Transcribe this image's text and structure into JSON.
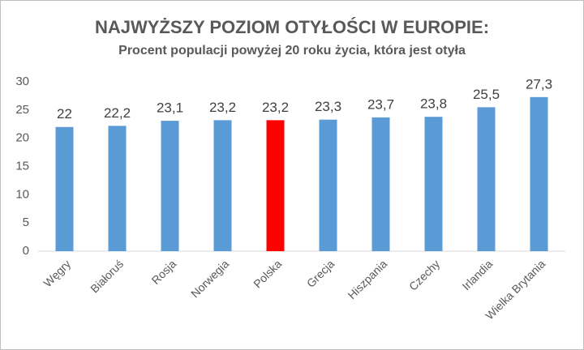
{
  "chart_data": {
    "type": "bar",
    "title": "NAJWYŻSZY POZIOM OTYŁOŚCI W EUROPIE:",
    "subtitle": "Procent populacji powyżej 20 roku życia, która jest otyła",
    "categories": [
      "Węgry",
      "Białoruś",
      "Rosja",
      "Norwegia",
      "Polska",
      "Grecja",
      "Hiszpania",
      "Czechy",
      "Irlandia",
      "Wielka Brytania"
    ],
    "values": [
      22,
      22.2,
      23.1,
      23.2,
      23.2,
      23.3,
      23.7,
      23.8,
      25.5,
      27.3
    ],
    "value_labels": [
      "22",
      "22,2",
      "23,1",
      "23,2",
      "23,2",
      "23,3",
      "23,7",
      "23,8",
      "25,5",
      "27,3"
    ],
    "colors": [
      "#5b9bd5",
      "#5b9bd5",
      "#5b9bd5",
      "#5b9bd5",
      "#ff0000",
      "#5b9bd5",
      "#5b9bd5",
      "#5b9bd5",
      "#5b9bd5",
      "#5b9bd5"
    ],
    "ylim": [
      0,
      30
    ],
    "yticks": [
      0,
      5,
      10,
      15,
      20,
      25,
      30
    ],
    "grid": false
  }
}
